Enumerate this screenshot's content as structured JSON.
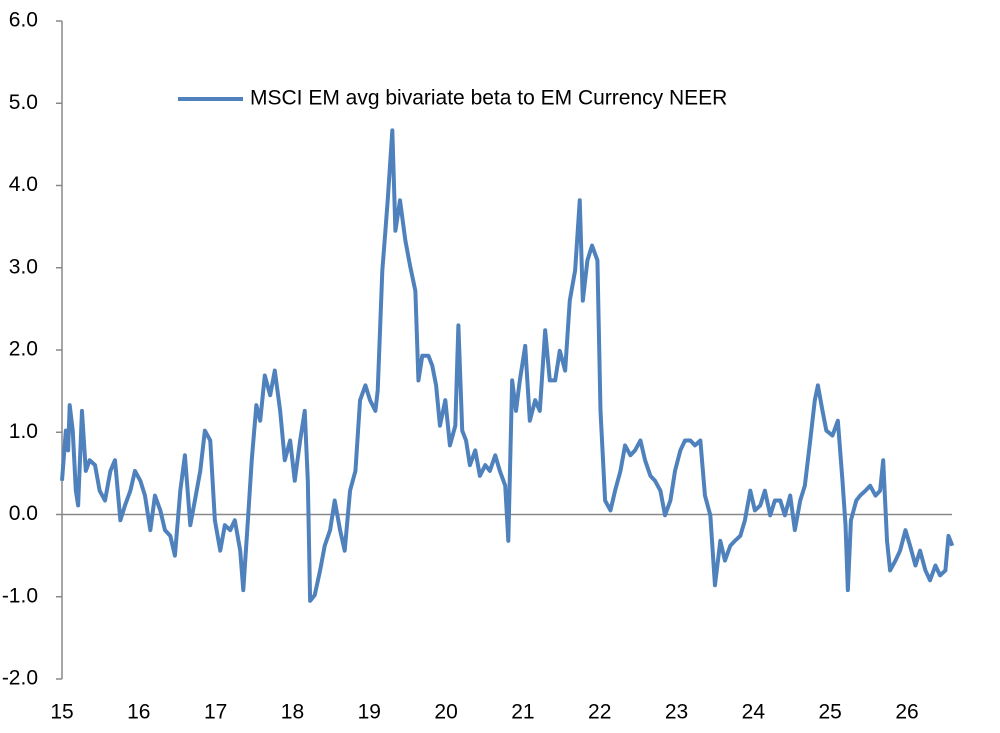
{
  "chart_data": {
    "type": "line",
    "x": [
      15.0,
      15.05,
      15.08,
      15.1,
      15.14,
      15.18,
      15.21,
      15.26,
      15.31,
      15.36,
      15.43,
      15.49,
      15.56,
      15.63,
      15.69,
      15.76,
      15.82,
      15.89,
      15.95,
      16.02,
      16.08,
      16.15,
      16.21,
      16.28,
      16.34,
      16.41,
      16.47,
      16.54,
      16.6,
      16.67,
      16.73,
      16.8,
      16.86,
      16.93,
      16.99,
      17.06,
      17.12,
      17.19,
      17.25,
      17.32,
      17.36,
      17.42,
      17.47,
      17.53,
      17.58,
      17.64,
      17.71,
      17.77,
      17.84,
      17.9,
      17.97,
      18.03,
      18.1,
      18.16,
      18.2,
      18.23,
      18.29,
      18.36,
      18.42,
      18.49,
      18.55,
      18.62,
      18.68,
      18.75,
      18.82,
      18.88,
      18.95,
      19.01,
      19.08,
      19.11,
      19.14,
      19.17,
      19.21,
      19.24,
      19.3,
      19.34,
      19.4,
      19.47,
      19.53,
      19.6,
      19.64,
      19.69,
      19.77,
      19.82,
      19.87,
      19.92,
      19.99,
      20.05,
      20.12,
      20.16,
      20.21,
      20.26,
      20.31,
      20.38,
      20.44,
      20.51,
      20.57,
      20.64,
      20.7,
      20.77,
      20.81,
      20.86,
      20.91,
      20.96,
      21.03,
      21.09,
      21.16,
      21.22,
      21.29,
      21.35,
      21.42,
      21.48,
      21.55,
      21.61,
      21.68,
      21.74,
      21.78,
      21.84,
      21.9,
      21.97,
      22.01,
      22.07,
      22.14,
      22.2,
      22.27,
      22.33,
      22.4,
      22.46,
      22.53,
      22.59,
      22.66,
      22.72,
      22.79,
      22.85,
      22.92,
      22.98,
      23.05,
      23.11,
      23.18,
      23.24,
      23.31,
      23.37,
      23.44,
      23.5,
      23.57,
      23.63,
      23.7,
      23.76,
      23.83,
      23.89,
      23.96,
      24.02,
      24.09,
      24.15,
      24.22,
      24.28,
      24.35,
      24.41,
      24.48,
      24.54,
      24.61,
      24.67,
      24.74,
      24.8,
      24.84,
      24.9,
      24.95,
      25.03,
      25.1,
      25.16,
      25.2,
      25.23,
      25.27,
      25.34,
      25.39,
      25.46,
      25.52,
      25.59,
      25.65,
      25.69,
      25.74,
      25.78,
      25.85,
      25.91,
      25.98,
      26.04,
      26.11,
      26.17,
      26.24,
      26.3,
      26.37,
      26.43,
      26.5,
      26.54,
      26.59
    ],
    "series": [
      {
        "name": "MSCI EM avg bivariate beta to EM Currency NEER",
        "color": "#4f81bd",
        "values": [
          0.41,
          1.02,
          0.78,
          1.33,
          1.02,
          0.29,
          0.11,
          1.26,
          0.53,
          0.66,
          0.6,
          0.29,
          0.17,
          0.53,
          0.66,
          -0.07,
          0.11,
          0.29,
          0.53,
          0.41,
          0.23,
          -0.19,
          0.23,
          0.05,
          -0.19,
          -0.26,
          -0.5,
          0.29,
          0.72,
          -0.13,
          0.17,
          0.53,
          1.02,
          0.9,
          -0.07,
          -0.44,
          -0.13,
          -0.19,
          -0.07,
          -0.44,
          -0.92,
          -0.07,
          0.66,
          1.33,
          1.14,
          1.69,
          1.45,
          1.75,
          1.26,
          0.66,
          0.9,
          0.41,
          0.9,
          1.26,
          0.41,
          -1.05,
          -0.98,
          -0.68,
          -0.38,
          -0.19,
          0.17,
          -0.19,
          -0.44,
          0.29,
          0.53,
          1.39,
          1.57,
          1.39,
          1.26,
          1.51,
          2.24,
          2.97,
          3.45,
          3.82,
          4.67,
          3.45,
          3.82,
          3.33,
          3.03,
          2.72,
          1.63,
          1.93,
          1.93,
          1.81,
          1.57,
          1.08,
          1.39,
          0.84,
          1.08,
          2.3,
          1.02,
          0.9,
          0.6,
          0.78,
          0.47,
          0.6,
          0.53,
          0.72,
          0.53,
          0.35,
          -0.32,
          1.63,
          1.26,
          1.63,
          2.05,
          1.14,
          1.39,
          1.26,
          2.24,
          1.63,
          1.63,
          1.99,
          1.75,
          2.6,
          2.97,
          3.82,
          2.6,
          3.09,
          3.27,
          3.09,
          1.26,
          0.17,
          0.05,
          0.29,
          0.53,
          0.84,
          0.72,
          0.78,
          0.9,
          0.66,
          0.47,
          0.41,
          0.29,
          -0.01,
          0.17,
          0.53,
          0.78,
          0.9,
          0.9,
          0.84,
          0.9,
          0.23,
          -0.01,
          -0.86,
          -0.32,
          -0.56,
          -0.38,
          -0.32,
          -0.26,
          -0.07,
          0.29,
          0.05,
          0.11,
          0.29,
          -0.01,
          0.17,
          0.17,
          -0.01,
          0.23,
          -0.19,
          0.17,
          0.35,
          0.9,
          1.39,
          1.57,
          1.26,
          1.02,
          0.96,
          1.14,
          0.41,
          -0.13,
          -0.92,
          -0.07,
          0.17,
          0.23,
          0.29,
          0.35,
          0.23,
          0.29,
          0.66,
          -0.32,
          -0.68,
          -0.56,
          -0.44,
          -0.19,
          -0.38,
          -0.62,
          -0.44,
          -0.68,
          -0.8,
          -0.62,
          -0.74,
          -0.68,
          -0.26,
          -0.38
        ]
      }
    ],
    "xlim": [
      15,
      26.69
    ],
    "xticks": [
      15,
      16,
      17,
      18,
      19,
      20,
      21,
      22,
      23,
      24,
      25,
      26
    ],
    "ylim": [
      -2,
      6
    ],
    "yticks": [
      {
        "value": -2,
        "label": "-2.0"
      },
      {
        "value": -1,
        "label": "-1.0"
      },
      {
        "value": 0,
        "label": "0.0"
      },
      {
        "value": 1,
        "label": "1.0"
      },
      {
        "value": 2,
        "label": "2.0"
      },
      {
        "value": 3,
        "label": "3.0"
      },
      {
        "value": 4,
        "label": "4.0"
      },
      {
        "value": 5,
        "label": "5.0"
      },
      {
        "value": 6,
        "label": "6.0"
      }
    ],
    "legend": "upper center"
  }
}
